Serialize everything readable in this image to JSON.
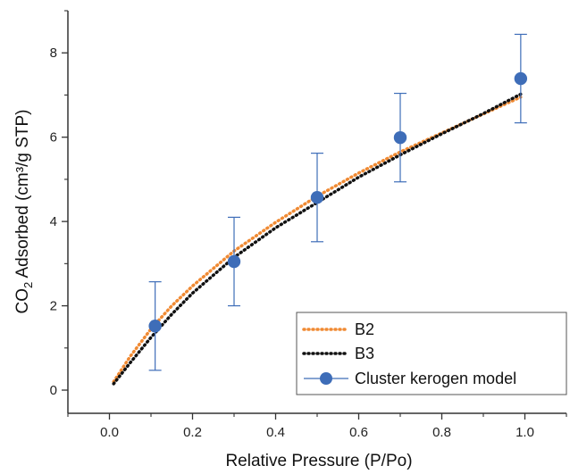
{
  "chart_data": {
    "type": "scatter",
    "xlabel": "Relative Pressure (P/Po)",
    "ylabel": {
      "prefix": "CO",
      "subscript": "2",
      "suffix": " Adsorbed (cm³/g STP)"
    },
    "xlim": [
      -0.1,
      1.1
    ],
    "ylim": [
      -0.55,
      9.0
    ],
    "xticks": [
      0.0,
      0.2,
      0.4,
      0.6,
      0.8,
      1.0
    ],
    "xtick_labels": [
      "0.0",
      "0.2",
      "0.4",
      "0.6",
      "0.8",
      "1.0"
    ],
    "yticks": [
      0,
      2,
      4,
      6,
      8
    ],
    "ytick_labels": [
      "0",
      "2",
      "4",
      "6",
      "8"
    ],
    "grid": false,
    "legend_position": "bottom-right",
    "series": [
      {
        "name": "B2",
        "kind": "dotted-line",
        "color": "#F08A33",
        "x": [
          0.01,
          0.05,
          0.1,
          0.15,
          0.2,
          0.3,
          0.4,
          0.5,
          0.6,
          0.7,
          0.8,
          0.9,
          0.99
        ],
        "y": [
          0.2,
          0.8,
          1.45,
          2.0,
          2.47,
          3.3,
          3.98,
          4.6,
          5.15,
          5.65,
          6.1,
          6.55,
          6.95
        ]
      },
      {
        "name": "B3",
        "kind": "dotted-line",
        "color": "#111111",
        "x": [
          0.01,
          0.05,
          0.1,
          0.15,
          0.2,
          0.3,
          0.4,
          0.5,
          0.6,
          0.7,
          0.8,
          0.9,
          0.99
        ],
        "y": [
          0.15,
          0.65,
          1.25,
          1.8,
          2.3,
          3.15,
          3.85,
          4.45,
          5.05,
          5.58,
          6.08,
          6.56,
          7.02
        ]
      },
      {
        "name": "Cluster kerogen model",
        "kind": "points-with-errorbars",
        "color": "#3E6DB8",
        "x": [
          0.11,
          0.3,
          0.5,
          0.7,
          0.99
        ],
        "y": [
          1.52,
          3.05,
          4.57,
          5.99,
          7.39
        ],
        "yerr": [
          1.05,
          1.05,
          1.05,
          1.05,
          1.05
        ]
      }
    ]
  }
}
